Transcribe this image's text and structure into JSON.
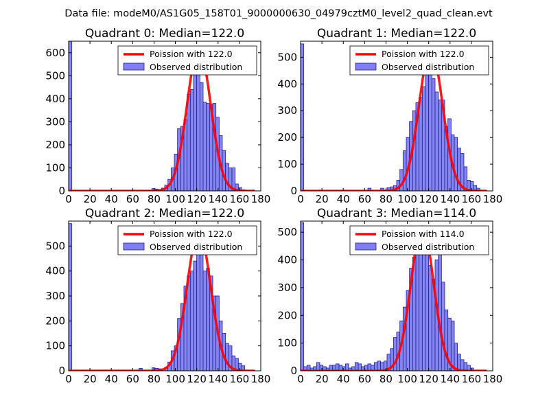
{
  "figure_title": "Data file: modeM0/AS1G05_158T01_9000000630_04979cztM0_level2_quad_clean.evt",
  "colors": {
    "bar_fill": "#7f7ff2",
    "bar_edge": "#1f1f8f",
    "curve": "#ff0000",
    "background": "#ffffff",
    "axis": "#000000"
  },
  "chart_data": [
    {
      "type": "bar",
      "title": "Quadrant 0: Median=122.0",
      "xlabel": "",
      "ylabel": "",
      "xlim": [
        0,
        180
      ],
      "ylim": [
        0,
        650
      ],
      "xticks": [
        0,
        20,
        40,
        60,
        80,
        100,
        120,
        140,
        160,
        180
      ],
      "yticks": [
        0,
        100,
        200,
        300,
        400,
        500,
        600
      ],
      "legend_position": "upper-right",
      "legend": [
        "Poission with 122.0",
        "Observed distribution"
      ],
      "median": 122,
      "bin_width": 3,
      "bins": [
        [
          0,
          650
        ],
        [
          78,
          10
        ],
        [
          81,
          8
        ],
        [
          84,
          5
        ],
        [
          87,
          12
        ],
        [
          90,
          25
        ],
        [
          93,
          50
        ],
        [
          96,
          100
        ],
        [
          99,
          160
        ],
        [
          102,
          270
        ],
        [
          105,
          280
        ],
        [
          108,
          310
        ],
        [
          111,
          420
        ],
        [
          114,
          440
        ],
        [
          117,
          520
        ],
        [
          120,
          620
        ],
        [
          123,
          470
        ],
        [
          126,
          385
        ],
        [
          129,
          380
        ],
        [
          132,
          375
        ],
        [
          135,
          380
        ],
        [
          138,
          320
        ],
        [
          141,
          240
        ],
        [
          144,
          175
        ],
        [
          147,
          120
        ],
        [
          150,
          100
        ],
        [
          153,
          100
        ],
        [
          156,
          30
        ],
        [
          159,
          15
        ],
        [
          162,
          5
        ]
      ],
      "curve_peak": 620
    },
    {
      "type": "bar",
      "title": "Quadrant 1: Median=122.0",
      "xlabel": "",
      "ylabel": "",
      "xlim": [
        0,
        180
      ],
      "ylim": [
        0,
        560
      ],
      "xticks": [
        0,
        20,
        40,
        60,
        80,
        100,
        120,
        140,
        160,
        180
      ],
      "yticks": [
        0,
        100,
        200,
        300,
        400,
        500
      ],
      "legend_position": "upper-right",
      "legend": [
        "Poission with 122.0",
        "Observed distribution"
      ],
      "median": 122,
      "bin_width": 3,
      "bins": [
        [
          0,
          550
        ],
        [
          63,
          10
        ],
        [
          75,
          10
        ],
        [
          81,
          12
        ],
        [
          84,
          15
        ],
        [
          87,
          20
        ],
        [
          90,
          40
        ],
        [
          93,
          80
        ],
        [
          96,
          150
        ],
        [
          99,
          200
        ],
        [
          102,
          260
        ],
        [
          105,
          300
        ],
        [
          108,
          330
        ],
        [
          111,
          350
        ],
        [
          114,
          390
        ],
        [
          117,
          440
        ],
        [
          120,
          520
        ],
        [
          123,
          420
        ],
        [
          126,
          370
        ],
        [
          129,
          340
        ],
        [
          132,
          340
        ],
        [
          135,
          240
        ],
        [
          138,
          270
        ],
        [
          141,
          210
        ],
        [
          144,
          200
        ],
        [
          147,
          160
        ],
        [
          150,
          140
        ],
        [
          153,
          90
        ],
        [
          156,
          40
        ],
        [
          159,
          35
        ],
        [
          162,
          20
        ],
        [
          165,
          10
        ]
      ],
      "curve_peak": 530
    },
    {
      "type": "bar",
      "title": "Quadrant 2: Median=122.0",
      "xlabel": "",
      "ylabel": "",
      "xlim": [
        0,
        180
      ],
      "ylim": [
        0,
        600
      ],
      "xticks": [
        0,
        20,
        40,
        60,
        80,
        100,
        120,
        140,
        160,
        180
      ],
      "yticks": [
        0,
        100,
        200,
        300,
        400,
        500
      ],
      "legend_position": "upper-right",
      "legend": [
        "Poission with 122.0",
        "Observed distribution"
      ],
      "median": 122,
      "bin_width": 3,
      "bins": [
        [
          0,
          590
        ],
        [
          66,
          10
        ],
        [
          78,
          12
        ],
        [
          81,
          10
        ],
        [
          84,
          8
        ],
        [
          90,
          15
        ],
        [
          93,
          35
        ],
        [
          96,
          80
        ],
        [
          99,
          100
        ],
        [
          102,
          210
        ],
        [
          105,
          270
        ],
        [
          108,
          340
        ],
        [
          111,
          380
        ],
        [
          114,
          400
        ],
        [
          117,
          440
        ],
        [
          120,
          560
        ],
        [
          123,
          530
        ],
        [
          126,
          400
        ],
        [
          129,
          410
        ],
        [
          132,
          380
        ],
        [
          135,
          300
        ],
        [
          138,
          300
        ],
        [
          141,
          200
        ],
        [
          144,
          150
        ],
        [
          147,
          110
        ],
        [
          150,
          100
        ],
        [
          153,
          60
        ],
        [
          156,
          50
        ],
        [
          159,
          30
        ],
        [
          162,
          20
        ]
      ],
      "curve_peak": 560
    },
    {
      "type": "bar",
      "title": "Quadrant 3: Median=114.0",
      "xlabel": "",
      "ylabel": "",
      "xlim": [
        0,
        180
      ],
      "ylim": [
        0,
        540
      ],
      "xticks": [
        0,
        20,
        40,
        60,
        80,
        100,
        120,
        140,
        160,
        180
      ],
      "yticks": [
        0,
        100,
        200,
        300,
        400,
        500
      ],
      "legend_position": "upper-right",
      "legend": [
        "Poission with 114.0",
        "Observed distribution"
      ],
      "median": 114,
      "bin_width": 3,
      "bins": [
        [
          0,
          535
        ],
        [
          3,
          15
        ],
        [
          6,
          20
        ],
        [
          9,
          10
        ],
        [
          12,
          15
        ],
        [
          15,
          30
        ],
        [
          18,
          20
        ],
        [
          21,
          15
        ],
        [
          24,
          10
        ],
        [
          27,
          20
        ],
        [
          30,
          20
        ],
        [
          33,
          25
        ],
        [
          36,
          20
        ],
        [
          39,
          15
        ],
        [
          42,
          25
        ],
        [
          45,
          10
        ],
        [
          48,
          15
        ],
        [
          51,
          30
        ],
        [
          54,
          25
        ],
        [
          57,
          15
        ],
        [
          60,
          20
        ],
        [
          63,
          25
        ],
        [
          66,
          20
        ],
        [
          69,
          30
        ],
        [
          72,
          35
        ],
        [
          75,
          30
        ],
        [
          78,
          35
        ],
        [
          81,
          60
        ],
        [
          84,
          80
        ],
        [
          87,
          120
        ],
        [
          90,
          140
        ],
        [
          93,
          180
        ],
        [
          96,
          230
        ],
        [
          99,
          290
        ],
        [
          102,
          370
        ],
        [
          105,
          410
        ],
        [
          108,
          430
        ],
        [
          111,
          500
        ],
        [
          114,
          520
        ],
        [
          117,
          440
        ],
        [
          120,
          380
        ],
        [
          123,
          330
        ],
        [
          126,
          400
        ],
        [
          129,
          440
        ],
        [
          132,
          320
        ],
        [
          135,
          220
        ],
        [
          138,
          190
        ],
        [
          141,
          180
        ],
        [
          144,
          100
        ],
        [
          147,
          60
        ],
        [
          150,
          40
        ],
        [
          153,
          30
        ],
        [
          156,
          20
        ],
        [
          159,
          10
        ]
      ],
      "curve_peak": 520
    }
  ]
}
